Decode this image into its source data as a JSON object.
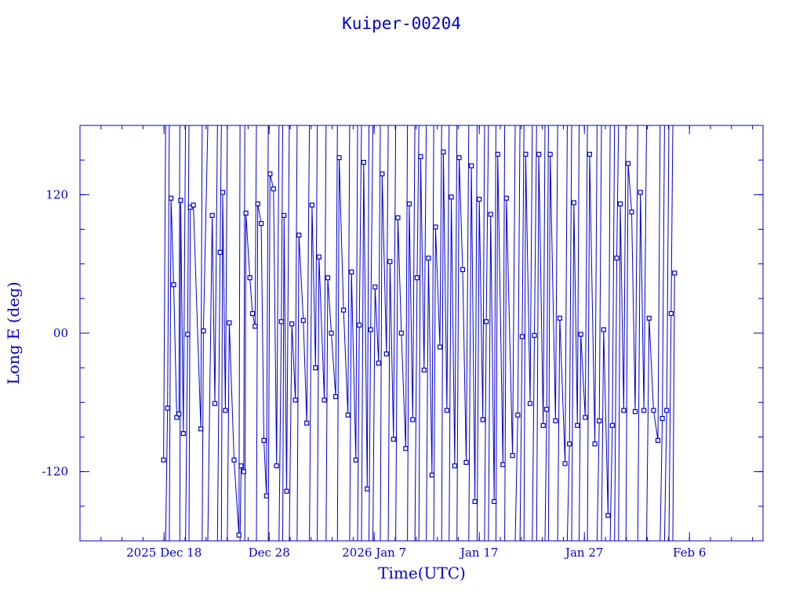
{
  "chart_data": {
    "type": "scatter",
    "title": "Kuiper-00204",
    "xlabel": "Time(UTC)",
    "ylabel": "Long E (deg)",
    "x_axis": {
      "type": "date",
      "range": [
        "2025-12-10",
        "2026-02-13"
      ]
    },
    "ylim": [
      -180,
      180
    ],
    "x_ticks": [
      {
        "date": "2025-12-18",
        "label": "2025 Dec 18"
      },
      {
        "date": "2025-12-28",
        "label": "Dec 28"
      },
      {
        "date": "2026-01-07",
        "label": "2026 Jan  7"
      },
      {
        "date": "2026-01-17",
        "label": "Jan 17"
      },
      {
        "date": "2026-01-27",
        "label": "Jan 27"
      },
      {
        "date": "2026-02-06",
        "label": "Feb  6"
      }
    ],
    "y_ticks": [
      {
        "value": -120,
        "label": "-120"
      },
      {
        "value": 0,
        "label": "00"
      },
      {
        "value": 120,
        "label": "120"
      }
    ],
    "grid": false,
    "color": "#0000cc",
    "series": [
      {
        "points": [
          [
            "2025-12-17T23:00",
            -110
          ],
          [
            "2025-12-18T08:00",
            -65
          ],
          [
            "2025-12-18T16:00",
            117
          ],
          [
            "2025-12-18T22:00",
            42
          ],
          [
            "2025-12-19T05:00",
            -73
          ],
          [
            "2025-12-19T10:00",
            -70
          ],
          [
            "2025-12-19T14:00",
            115
          ],
          [
            "2025-12-19T20:00",
            -87
          ],
          [
            "2025-12-20T06:00",
            -1
          ],
          [
            "2025-12-20T12:00",
            109
          ],
          [
            "2025-12-20T19:00",
            111
          ],
          [
            "2025-12-21T12:00",
            -83
          ],
          [
            "2025-12-21T18:00",
            2
          ],
          [
            "2025-12-22T14:00",
            102
          ],
          [
            "2025-12-22T20:00",
            -61
          ],
          [
            "2025-12-23T08:00",
            70
          ],
          [
            "2025-12-23T14:00",
            122
          ],
          [
            "2025-12-23T20:00",
            -67
          ],
          [
            "2025-12-24T05:00",
            9
          ],
          [
            "2025-12-24T16:00",
            -110
          ],
          [
            "2025-12-25T03:00",
            -175
          ],
          [
            "2025-12-25T08:00",
            -115
          ],
          [
            "2025-12-25T14:00",
            -120
          ],
          [
            "2025-12-25T19:00",
            104
          ],
          [
            "2025-12-26T04:00",
            48
          ],
          [
            "2025-12-26T10:00",
            17
          ],
          [
            "2025-12-26T16:00",
            6
          ],
          [
            "2025-12-26T22:00",
            112
          ],
          [
            "2025-12-27T06:00",
            95
          ],
          [
            "2025-12-27T12:00",
            -93
          ],
          [
            "2025-12-27T18:00",
            -141
          ],
          [
            "2025-12-28T02:00",
            138
          ],
          [
            "2025-12-28T10:00",
            125
          ],
          [
            "2025-12-28T17:00",
            -115
          ],
          [
            "2025-12-29T04:00",
            10
          ],
          [
            "2025-12-29T10:00",
            102
          ],
          [
            "2025-12-29T16:00",
            -137
          ],
          [
            "2025-12-30T04:00",
            8
          ],
          [
            "2025-12-30T12:00",
            -58
          ],
          [
            "2025-12-30T20:00",
            85
          ],
          [
            "2025-12-31T06:00",
            11
          ],
          [
            "2025-12-31T14:00",
            -78
          ],
          [
            "2026-01-01T02:00",
            111
          ],
          [
            "2026-01-01T10:00",
            -30
          ],
          [
            "2026-01-01T18:00",
            66
          ],
          [
            "2026-01-02T06:00",
            -58
          ],
          [
            "2026-01-02T14:00",
            48
          ],
          [
            "2026-01-02T22:00",
            0
          ],
          [
            "2026-01-03T08:00",
            -55
          ],
          [
            "2026-01-03T16:00",
            152
          ],
          [
            "2026-01-04T02:00",
            20
          ],
          [
            "2026-01-04T12:00",
            -71
          ],
          [
            "2026-01-04T20:00",
            53
          ],
          [
            "2026-01-05T06:00",
            -110
          ],
          [
            "2026-01-05T14:00",
            7
          ],
          [
            "2026-01-06T00:00",
            148
          ],
          [
            "2026-01-06T08:00",
            -135
          ],
          [
            "2026-01-06T16:00",
            3
          ],
          [
            "2026-01-07T02:00",
            40
          ],
          [
            "2026-01-07T10:00",
            -26
          ],
          [
            "2026-01-07T18:00",
            138
          ],
          [
            "2026-01-08T04:00",
            -18
          ],
          [
            "2026-01-08T12:00",
            62
          ],
          [
            "2026-01-08T20:00",
            -92
          ],
          [
            "2026-01-09T06:00",
            100
          ],
          [
            "2026-01-09T14:00",
            0
          ],
          [
            "2026-01-10T00:00",
            -100
          ],
          [
            "2026-01-10T08:00",
            112
          ],
          [
            "2026-01-10T16:00",
            -75
          ],
          [
            "2026-01-11T02:00",
            48
          ],
          [
            "2026-01-11T10:00",
            153
          ],
          [
            "2026-01-11T18:00",
            -32
          ],
          [
            "2026-01-12T04:00",
            65
          ],
          [
            "2026-01-12T12:00",
            -123
          ],
          [
            "2026-01-12T20:00",
            92
          ],
          [
            "2026-01-13T06:00",
            -12
          ],
          [
            "2026-01-13T14:00",
            157
          ],
          [
            "2026-01-13T22:00",
            -67
          ],
          [
            "2026-01-14T08:00",
            118
          ],
          [
            "2026-01-14T16:00",
            -115
          ],
          [
            "2026-01-15T02:00",
            152
          ],
          [
            "2026-01-15T10:00",
            55
          ],
          [
            "2026-01-15T18:00",
            -112
          ],
          [
            "2026-01-16T06:00",
            145
          ],
          [
            "2026-01-16T14:00",
            -146
          ],
          [
            "2026-01-17T00:00",
            116
          ],
          [
            "2026-01-17T08:00",
            -75
          ],
          [
            "2026-01-17T16:00",
            10
          ],
          [
            "2026-01-18T02:00",
            103
          ],
          [
            "2026-01-18T10:00",
            -146
          ],
          [
            "2026-01-18T18:00",
            155
          ],
          [
            "2026-01-19T06:00",
            -114
          ],
          [
            "2026-01-19T14:00",
            117
          ],
          [
            "2026-01-20T04:00",
            -106
          ],
          [
            "2026-01-20T16:00",
            -71
          ],
          [
            "2026-01-21T02:00",
            -3
          ],
          [
            "2026-01-21T10:00",
            155
          ],
          [
            "2026-01-21T20:00",
            -61
          ],
          [
            "2026-01-22T06:00",
            -2
          ],
          [
            "2026-01-22T16:00",
            155
          ],
          [
            "2026-01-23T02:00",
            -80
          ],
          [
            "2026-01-23T10:00",
            -66
          ],
          [
            "2026-01-23T18:00",
            155
          ],
          [
            "2026-01-24T06:00",
            -76
          ],
          [
            "2026-01-24T16:00",
            13
          ],
          [
            "2026-01-25T04:00",
            -113
          ],
          [
            "2026-01-25T14:00",
            -96
          ],
          [
            "2026-01-26T00:00",
            113
          ],
          [
            "2026-01-26T08:00",
            -80
          ],
          [
            "2026-01-26T16:00",
            -1
          ],
          [
            "2026-01-27T02:00",
            -73
          ],
          [
            "2026-01-27T12:00",
            155
          ],
          [
            "2026-01-28T00:00",
            -96
          ],
          [
            "2026-01-28T10:00",
            -76
          ],
          [
            "2026-01-28T20:00",
            3
          ],
          [
            "2026-01-29T06:00",
            -158
          ],
          [
            "2026-01-29T16:00",
            -80
          ],
          [
            "2026-01-30T02:00",
            65
          ],
          [
            "2026-01-30T10:00",
            112
          ],
          [
            "2026-01-30T18:00",
            -67
          ],
          [
            "2026-01-31T04:00",
            147
          ],
          [
            "2026-01-31T12:00",
            105
          ],
          [
            "2026-01-31T20:00",
            -68
          ],
          [
            "2026-02-01T08:00",
            122
          ],
          [
            "2026-02-01T16:00",
            -67
          ],
          [
            "2026-02-02T04:00",
            13
          ],
          [
            "2026-02-02T14:00",
            -67
          ],
          [
            "2026-02-03T00:00",
            -93
          ],
          [
            "2026-02-03T10:00",
            -74
          ],
          [
            "2026-02-03T20:00",
            -67
          ],
          [
            "2026-02-04T06:00",
            17
          ],
          [
            "2026-02-04T14:00",
            52
          ]
        ]
      }
    ]
  }
}
